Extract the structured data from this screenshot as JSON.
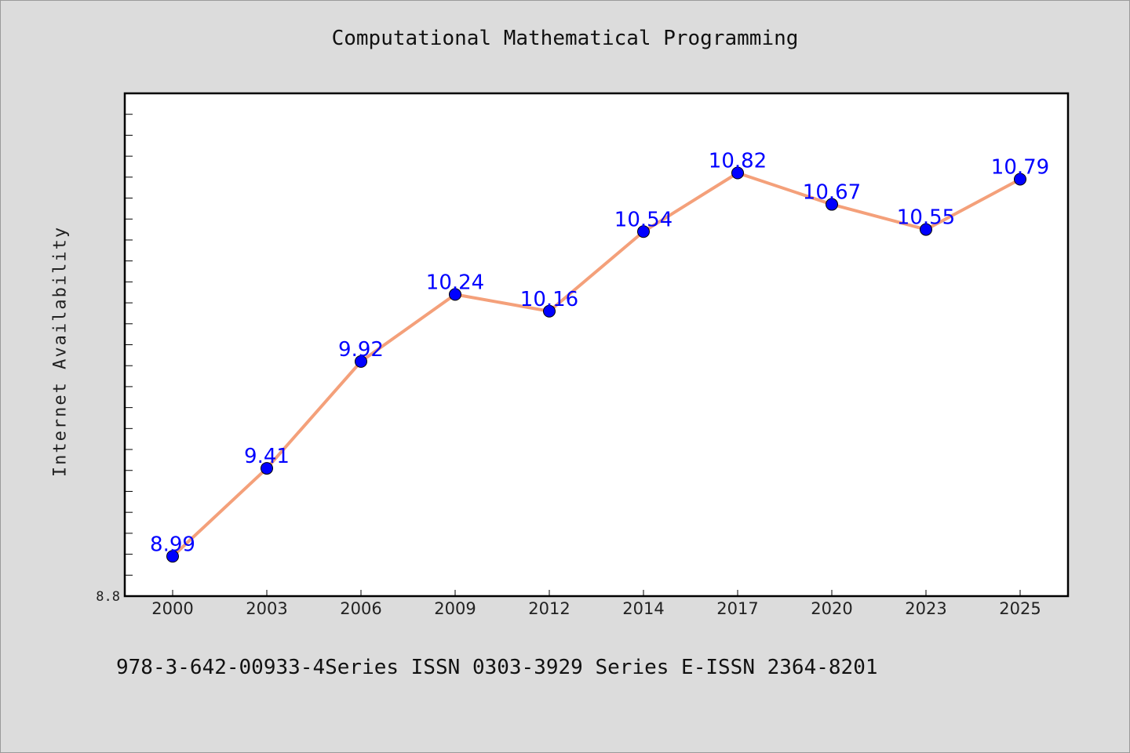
{
  "chart_data": {
    "type": "line",
    "title": "Computational Mathematical Programming",
    "xlabel": "",
    "ylabel": "Internet Availability",
    "categories": [
      "2000",
      "2003",
      "2006",
      "2009",
      "2012",
      "2014",
      "2017",
      "2020",
      "2023",
      "2025"
    ],
    "series": [
      {
        "values": [
          8.99,
          9.41,
          9.92,
          10.24,
          10.16,
          10.54,
          10.82,
          10.67,
          10.55,
          10.79
        ],
        "line_color": "#f4a07a",
        "marker_color": "#0000ff"
      }
    ],
    "ylim": [
      8.8,
      11.2
    ],
    "y_tick_labels": [
      "8.8"
    ],
    "grid": false,
    "legend": "none",
    "background": "#dcdcdc",
    "plot_background": "#ffffff"
  },
  "footer": {
    "text": "978-3-642-00933-4Series ISSN 0303-3929 Series E-ISSN 2364-8201"
  }
}
